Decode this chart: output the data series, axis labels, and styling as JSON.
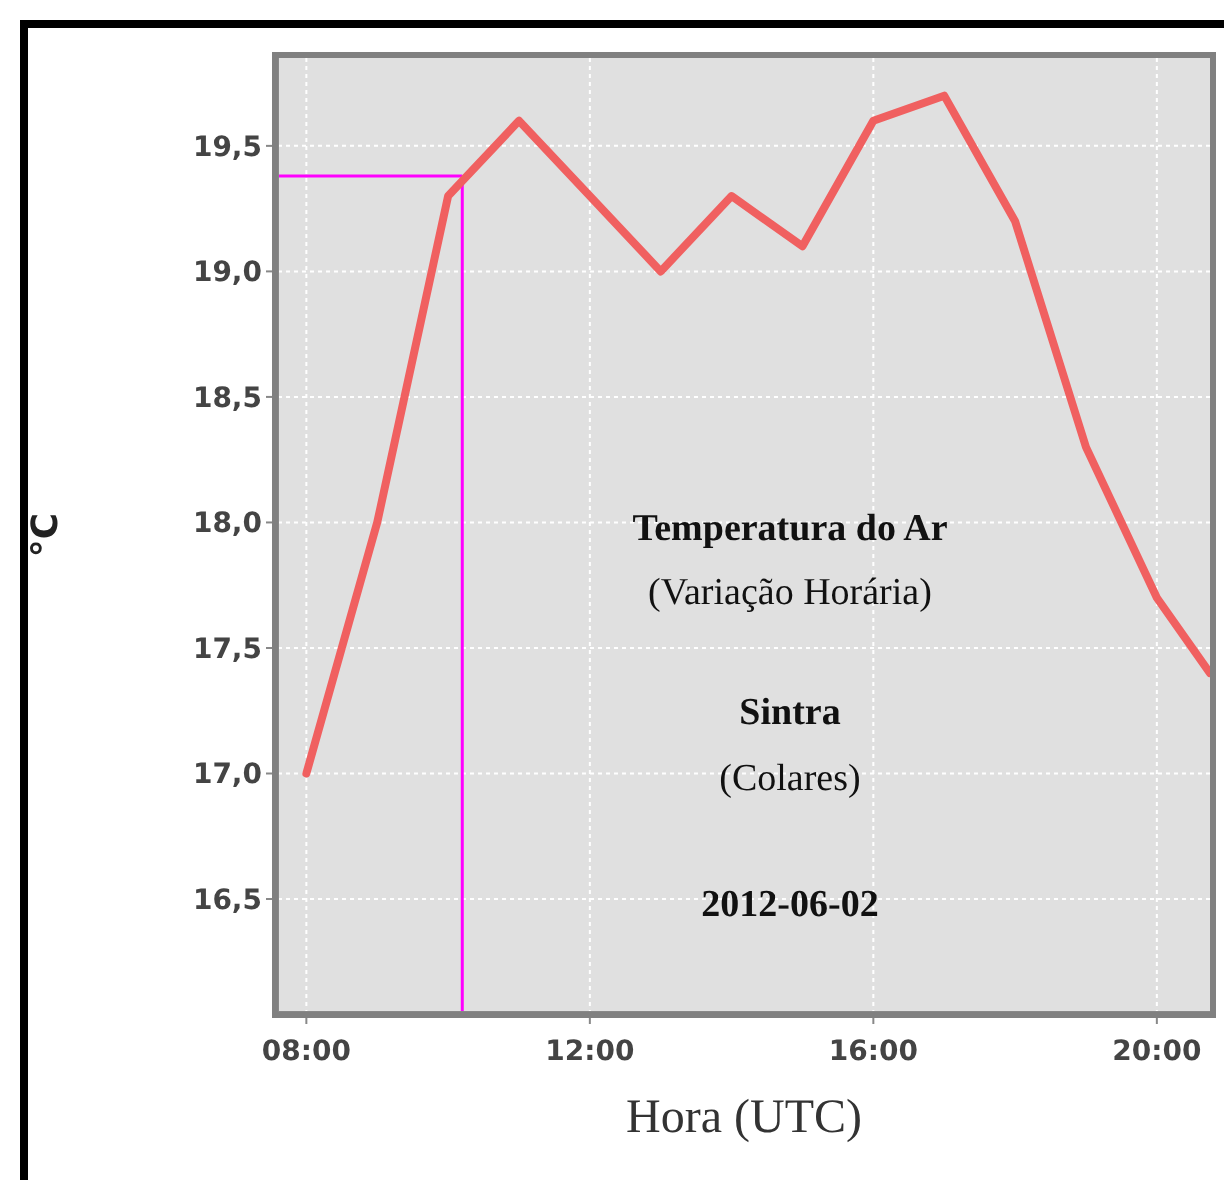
{
  "chart_data": {
    "type": "line",
    "xlabel": "Hora (UTC)",
    "ylabel": "°C",
    "annotations": [
      "Temperatura do Ar",
      "(Variação Horária)",
      "Sintra",
      "(Colares)",
      "2012-06-02"
    ],
    "x": [
      8,
      9,
      10,
      11,
      12,
      13,
      14,
      15,
      16,
      17,
      18,
      19,
      20,
      20.75
    ],
    "series": [
      {
        "color": "#f06060",
        "values": [
          17.0,
          18.0,
          19.3,
          19.6,
          19.3,
          19.0,
          19.3,
          19.1,
          19.6,
          19.7,
          19.2,
          18.3,
          17.7,
          17.4
        ]
      }
    ],
    "xlim": [
      7.6,
      20.75
    ],
    "xticks": [
      {
        "value": 8,
        "label": "08:00"
      },
      {
        "value": 12,
        "label": "12:00"
      },
      {
        "value": 16,
        "label": "16:00"
      },
      {
        "value": 20,
        "label": "20:00"
      }
    ],
    "ylim": [
      16.05,
      19.85
    ],
    "yticks": [
      {
        "value": 16.5,
        "label": "16,5"
      },
      {
        "value": 17,
        "label": "17,0"
      },
      {
        "value": 17.5,
        "label": "17,5"
      },
      {
        "value": 18,
        "label": "18,0"
      },
      {
        "value": 18.5,
        "label": "18,5"
      },
      {
        "value": 19,
        "label": "19,0"
      },
      {
        "value": 19.5,
        "label": "19,5"
      }
    ],
    "ref_lines": [
      {
        "axis": "x",
        "value": 10.2,
        "color": "#ff00ff"
      },
      {
        "axis": "y",
        "value": 19.38,
        "color": "#ff00ff"
      }
    ],
    "grid": true,
    "marker": "none",
    "line_style": "solid"
  }
}
